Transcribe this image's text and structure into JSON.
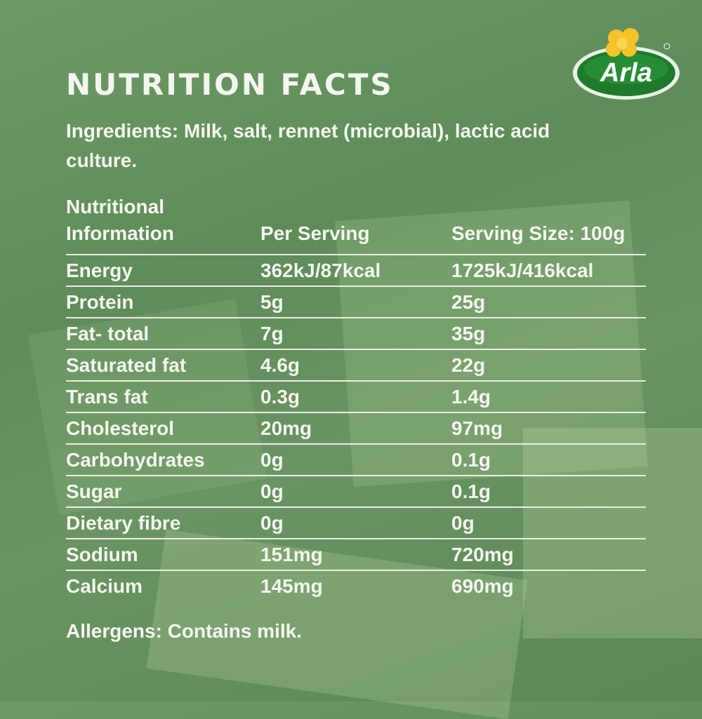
{
  "brand": {
    "logo_text": "Arla",
    "colors": {
      "background": "#628f5c",
      "logo_green": "#1f7a2c",
      "logo_flower": "#f6c22a",
      "text": "#f3f6ee"
    }
  },
  "title": "NUTRITION FACTS",
  "ingredients": "Ingredients: Milk, salt, rennet (microbial), lactic acid culture.",
  "table": {
    "headers": [
      "Nutritional Information",
      "Per Serving",
      "Serving Size: 100g"
    ],
    "rows": [
      [
        "Energy",
        "362kJ/87kcal",
        "1725kJ/416kcal"
      ],
      [
        "Protein",
        "5g",
        "25g"
      ],
      [
        "Fat- total",
        "7g",
        "35g"
      ],
      [
        "Saturated fat",
        "4.6g",
        "22g"
      ],
      [
        "Trans fat",
        "0.3g",
        "1.4g"
      ],
      [
        "Cholesterol",
        "20mg",
        "97mg"
      ],
      [
        "Carbohydrates",
        "0g",
        "0.1g"
      ],
      [
        "Sugar",
        "0g",
        "0.1g"
      ],
      [
        "Dietary fibre",
        "0g",
        "0g"
      ],
      [
        "Sodium",
        "151mg",
        "720mg"
      ],
      [
        "Calcium",
        "145mg",
        "690mg"
      ]
    ]
  },
  "allergens": "Allergens: Contains milk."
}
